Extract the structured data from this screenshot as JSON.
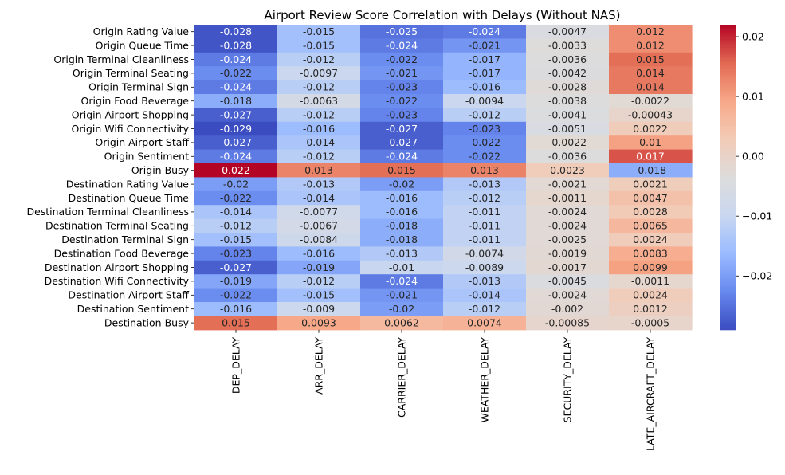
{
  "chart_data": {
    "type": "heatmap",
    "title": "Airport Review Score Correlation with Delays (Without NAS)",
    "columns": [
      "DEP_DELAY",
      "ARR_DELAY",
      "CARRIER_DELAY",
      "WEATHER_DELAY",
      "SECURITY_DELAY",
      "LATE_AIRCRAFT_DELAY"
    ],
    "rows": [
      "Origin Rating Value",
      "Origin Queue Time",
      "Origin Terminal Cleanliness",
      "Origin Terminal Seating",
      "Origin Terminal Sign",
      "Origin Food Beverage",
      "Origin Airport Shopping",
      "Origin Wifi Connectivity",
      "Origin Airport Staff",
      "Origin Sentiment",
      "Origin Busy",
      "Destination Rating Value",
      "Destination Queue Time",
      "Destination Terminal Cleanliness",
      "Destination Terminal Seating",
      "Destination Terminal Sign",
      "Destination Food Beverage",
      "Destination Airport Shopping",
      "Destination Wifi Connectivity",
      "Destination Airport Staff",
      "Destination Sentiment",
      "Destination Busy"
    ],
    "values": [
      [
        -0.028,
        -0.015,
        -0.025,
        -0.024,
        -0.0047,
        0.012
      ],
      [
        -0.028,
        -0.015,
        -0.024,
        -0.021,
        -0.0033,
        0.012
      ],
      [
        -0.024,
        -0.012,
        -0.022,
        -0.017,
        -0.0036,
        0.015
      ],
      [
        -0.022,
        -0.0097,
        -0.021,
        -0.017,
        -0.0042,
        0.014
      ],
      [
        -0.024,
        -0.012,
        -0.023,
        -0.016,
        -0.0028,
        0.014
      ],
      [
        -0.018,
        -0.0063,
        -0.022,
        -0.0094,
        -0.0038,
        -0.0022
      ],
      [
        -0.027,
        -0.012,
        -0.023,
        -0.012,
        -0.0041,
        -0.00043
      ],
      [
        -0.029,
        -0.016,
        -0.027,
        -0.023,
        -0.0051,
        0.0022
      ],
      [
        -0.027,
        -0.014,
        -0.027,
        -0.022,
        -0.0022,
        0.01
      ],
      [
        -0.024,
        -0.012,
        -0.024,
        -0.022,
        -0.0036,
        0.017
      ],
      [
        0.022,
        0.013,
        0.015,
        0.013,
        0.0023,
        -0.018
      ],
      [
        -0.02,
        -0.013,
        -0.02,
        -0.013,
        -0.0021,
        0.0021
      ],
      [
        -0.022,
        -0.014,
        -0.016,
        -0.012,
        -0.0011,
        0.0047
      ],
      [
        -0.014,
        -0.0077,
        -0.016,
        -0.011,
        -0.0024,
        0.0028
      ],
      [
        -0.012,
        -0.0067,
        -0.018,
        -0.011,
        -0.0024,
        0.0065
      ],
      [
        -0.015,
        -0.0084,
        -0.018,
        -0.011,
        -0.0025,
        0.0024
      ],
      [
        -0.023,
        -0.016,
        -0.013,
        -0.0074,
        -0.0019,
        0.0083
      ],
      [
        -0.027,
        -0.019,
        -0.01,
        -0.0089,
        -0.0017,
        0.0099
      ],
      [
        -0.019,
        -0.012,
        -0.024,
        -0.013,
        -0.0045,
        -0.0011
      ],
      [
        -0.022,
        -0.015,
        -0.021,
        -0.014,
        -0.0024,
        0.0024
      ],
      [
        -0.016,
        -0.009,
        -0.02,
        -0.012,
        -0.002,
        0.0012
      ],
      [
        0.015,
        0.0093,
        0.0062,
        0.0074,
        -0.00085,
        -0.0005
      ]
    ],
    "cell_labels": [
      [
        "-0.028",
        "-0.015",
        "-0.025",
        "-0.024",
        "-0.0047",
        "0.012"
      ],
      [
        "-0.028",
        "-0.015",
        "-0.024",
        "-0.021",
        "-0.0033",
        "0.012"
      ],
      [
        "-0.024",
        "-0.012",
        "-0.022",
        "-0.017",
        "-0.0036",
        "0.015"
      ],
      [
        "-0.022",
        "-0.0097",
        "-0.021",
        "-0.017",
        "-0.0042",
        "0.014"
      ],
      [
        "-0.024",
        "-0.012",
        "-0.023",
        "-0.016",
        "-0.0028",
        "0.014"
      ],
      [
        "-0.018",
        "-0.0063",
        "-0.022",
        "-0.0094",
        "-0.0038",
        "-0.0022"
      ],
      [
        "-0.027",
        "-0.012",
        "-0.023",
        "-0.012",
        "-0.0041",
        "-0.00043"
      ],
      [
        "-0.029",
        "-0.016",
        "-0.027",
        "-0.023",
        "-0.0051",
        "0.0022"
      ],
      [
        "-0.027",
        "-0.014",
        "-0.027",
        "-0.022",
        "-0.0022",
        "0.01"
      ],
      [
        "-0.024",
        "-0.012",
        "-0.024",
        "-0.022",
        "-0.0036",
        "0.017"
      ],
      [
        "0.022",
        "0.013",
        "0.015",
        "0.013",
        "0.0023",
        "-0.018"
      ],
      [
        "-0.02",
        "-0.013",
        "-0.02",
        "-0.013",
        "-0.0021",
        "0.0021"
      ],
      [
        "-0.022",
        "-0.014",
        "-0.016",
        "-0.012",
        "-0.0011",
        "0.0047"
      ],
      [
        "-0.014",
        "-0.0077",
        "-0.016",
        "-0.011",
        "-0.0024",
        "0.0028"
      ],
      [
        "-0.012",
        "-0.0067",
        "-0.018",
        "-0.011",
        "-0.0024",
        "0.0065"
      ],
      [
        "-0.015",
        "-0.0084",
        "-0.018",
        "-0.011",
        "-0.0025",
        "0.0024"
      ],
      [
        "-0.023",
        "-0.016",
        "-0.013",
        "-0.0074",
        "-0.0019",
        "0.0083"
      ],
      [
        "-0.027",
        "-0.019",
        "-0.01",
        "-0.0089",
        "-0.0017",
        "0.0099"
      ],
      [
        "-0.019",
        "-0.012",
        "-0.024",
        "-0.013",
        "-0.0045",
        "-0.0011"
      ],
      [
        "-0.022",
        "-0.015",
        "-0.021",
        "-0.014",
        "-0.0024",
        "0.0024"
      ],
      [
        "-0.016",
        "-0.009",
        "-0.02",
        "-0.012",
        "-0.002",
        "0.0012"
      ],
      [
        "0.015",
        "0.0093",
        "0.0062",
        "0.0074",
        "-0.00085",
        "-0.0005"
      ]
    ],
    "colormap": "coolwarm",
    "colormap_stops": [
      "#3b4cc0",
      "#6788ee",
      "#9abbff",
      "#c9d7f0",
      "#dddcdc",
      "#f2cbb7",
      "#f7a889",
      "#e26952",
      "#b40426"
    ],
    "vmin": -0.029,
    "vmax": 0.022,
    "colorbar": {
      "ticks": [
        0.02,
        0.01,
        0.0,
        -0.01,
        -0.02
      ],
      "tick_labels": [
        "0.02",
        "0.01",
        "0.00",
        "−0.01",
        "−0.02"
      ]
    },
    "label_colors": {
      "dark": "#262626",
      "light": "#ffffff"
    }
  }
}
